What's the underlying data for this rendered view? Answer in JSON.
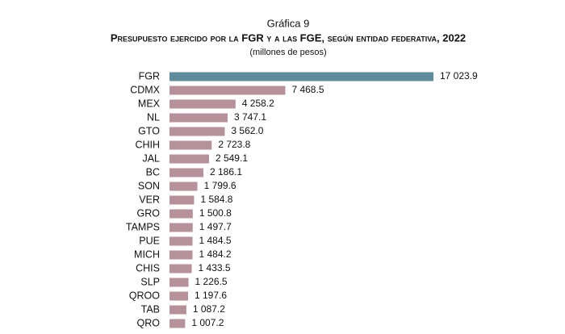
{
  "chart_data": {
    "type": "bar",
    "orientation": "horizontal",
    "title": "Gráfica 9",
    "subtitle": "Presupuesto ejercido por la FGR y a las FGE, según entidad federativa, 2022",
    "unit_note": "(millones de pesos)",
    "categories": [
      "FGR",
      "CDMX",
      "MEX",
      "NL",
      "GTO",
      "CHIH",
      "JAL",
      "BC",
      "SON",
      "VER",
      "GRO",
      "TAMPS",
      "PUE",
      "MICH",
      "CHIS",
      "SLP",
      "QROO",
      "TAB",
      "QRO"
    ],
    "values": [
      17023.9,
      7468.5,
      4258.2,
      3747.1,
      3562.0,
      2723.8,
      2549.1,
      2186.1,
      1799.6,
      1584.8,
      1500.8,
      1497.7,
      1484.5,
      1484.2,
      1433.5,
      1226.5,
      1197.6,
      1087.2,
      1007.2
    ],
    "value_labels": [
      "17 023.9",
      "7 468.5",
      "4 258.2",
      "3 747.1",
      "3 562.0",
      "2 723.8",
      "2 549.1",
      "2 186.1",
      "1 799.6",
      "1 584.8",
      "1 500.8",
      "1 497.7",
      "1 484.5",
      "1 484.2",
      "1 433.5",
      "1 226.5",
      "1 197.6",
      "1 087.2",
      "1 007.2"
    ],
    "colors": [
      "#5e8b9c",
      "#b5919a",
      "#b5919a",
      "#b5919a",
      "#b5919a",
      "#b5919a",
      "#b5919a",
      "#b5919a",
      "#b5919a",
      "#b5919a",
      "#b5919a",
      "#b5919a",
      "#b5919a",
      "#b5919a",
      "#b5919a",
      "#b5919a",
      "#b5919a",
      "#b5919a",
      "#b5919a"
    ]
  }
}
